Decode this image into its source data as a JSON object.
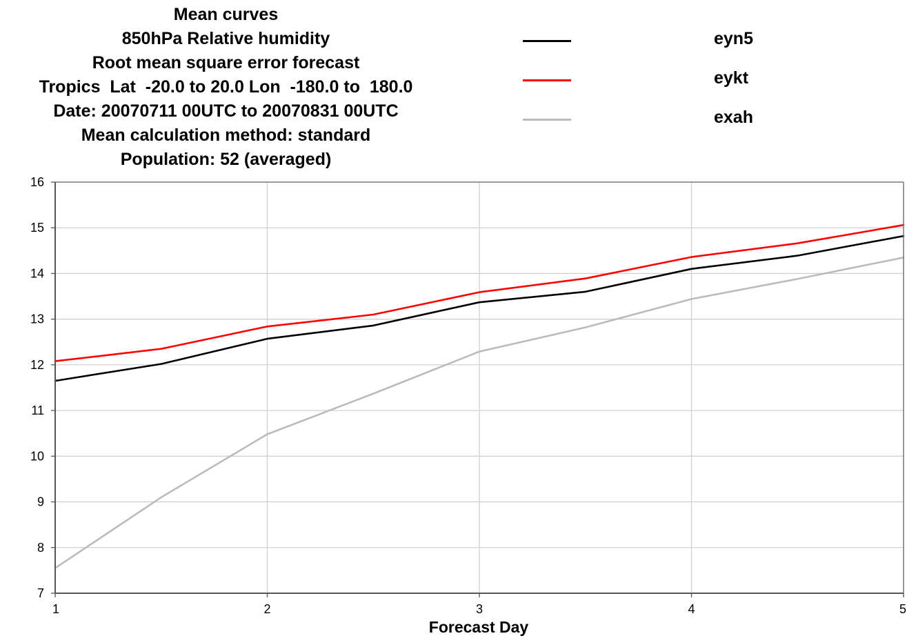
{
  "chart_data": {
    "type": "line",
    "title_lines": [
      "Mean curves",
      "850hPa Relative humidity",
      "Root mean square error forecast",
      "Tropics  Lat  -20.0 to 20.0 Lon  -180.0 to  180.0",
      "Date: 20070711 00UTC to 20070831 00UTC",
      "Mean calculation method: standard",
      "Population: 52 (averaged)"
    ],
    "xlabel": "Forecast Day",
    "ylabel": "",
    "xlim": [
      1,
      5
    ],
    "ylim": [
      7,
      16
    ],
    "x_ticks": [
      "1",
      "2",
      "3",
      "4",
      "5"
    ],
    "y_ticks": [
      "7",
      "8",
      "9",
      "10",
      "11",
      "12",
      "13",
      "14",
      "15",
      "16"
    ],
    "grid": true,
    "legend_position": "top-right",
    "x": [
      1,
      1.5,
      2,
      2.5,
      3,
      3.5,
      4,
      4.5,
      5
    ],
    "series": [
      {
        "name": "eyn5",
        "color": "#000000",
        "values": [
          11.65,
          12.02,
          12.57,
          12.86,
          13.37,
          13.6,
          14.1,
          14.39,
          14.82
        ]
      },
      {
        "name": "eykt",
        "color": "#ff0000",
        "values": [
          12.08,
          12.35,
          12.84,
          13.1,
          13.59,
          13.89,
          14.36,
          14.66,
          15.06
        ]
      },
      {
        "name": "exah",
        "color": "#bbbbbb",
        "values": [
          7.55,
          9.1,
          10.48,
          11.37,
          12.29,
          12.82,
          13.44,
          13.88,
          14.35
        ]
      }
    ]
  }
}
